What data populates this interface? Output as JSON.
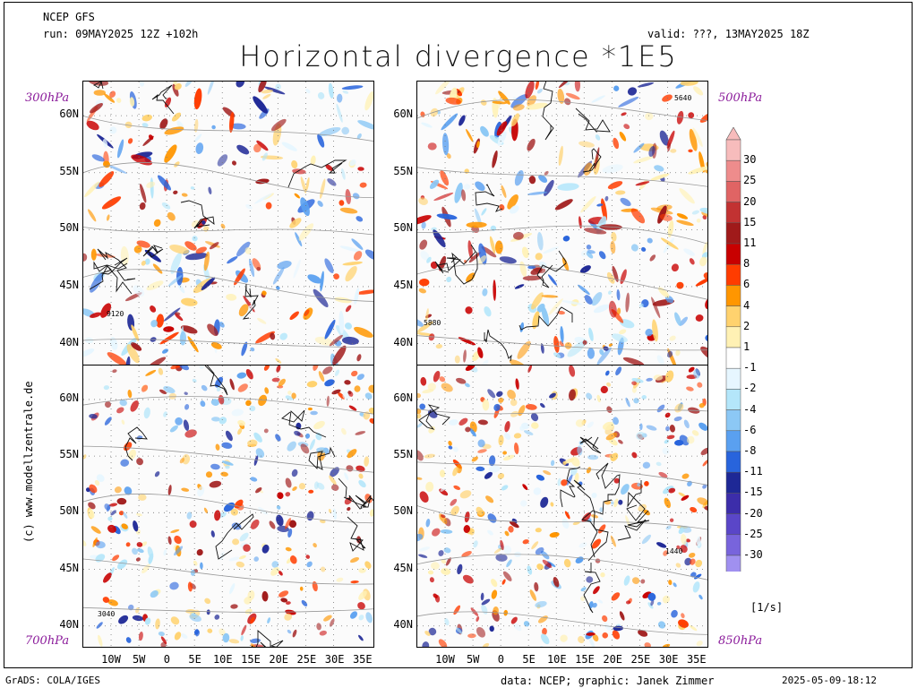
{
  "header": {
    "model": "NCEP GFS",
    "run": "run: 09MAY2025 12Z +102h",
    "valid": "valid: ???, 13MAY2025 18Z",
    "title": "Horizontal divergence *1E5"
  },
  "panels": [
    {
      "id": "p300",
      "level": "300hPa",
      "lat_labels": [
        "60N",
        "55N",
        "50N",
        "45N",
        "40N"
      ],
      "contour_labels": [
        "9120"
      ]
    },
    {
      "id": "p500",
      "level": "500hPa",
      "lat_labels": [
        "60N",
        "55N",
        "50N",
        "45N",
        "40N"
      ],
      "contour_labels": [
        "5640",
        "5880"
      ]
    },
    {
      "id": "p700",
      "level": "700hPa",
      "lat_labels": [
        "60N",
        "55N",
        "50N",
        "45N",
        "40N"
      ],
      "contour_labels": [
        "3040"
      ]
    },
    {
      "id": "p850",
      "level": "850hPa",
      "lat_labels": [
        "60N",
        "55N",
        "50N",
        "45N",
        "40N"
      ],
      "contour_labels": [
        "1440"
      ]
    }
  ],
  "lon_labels": [
    "10W",
    "5W",
    "0",
    "5E",
    "10E",
    "15E",
    "20E",
    "25E",
    "30E",
    "35E"
  ],
  "colorbar": {
    "unit": "[1/s]",
    "labels": [
      "30",
      "25",
      "20",
      "15",
      "11",
      "8",
      "6",
      "4",
      "2",
      "1",
      "-1",
      "-2",
      "-4",
      "-6",
      "-8",
      "-11",
      "-15",
      "-20",
      "-25",
      "-30"
    ],
    "colors": [
      "#f7bcbc",
      "#ee8c8c",
      "#e06464",
      "#c23232",
      "#a01a1a",
      "#c80000",
      "#ff3c00",
      "#ff9600",
      "#ffd26e",
      "#fff1b4",
      "#ffffff",
      "#e6f6ff",
      "#b4e6fa",
      "#8cc8f5",
      "#5aa0f0",
      "#2864dc",
      "#1e2896",
      "#3c2daa",
      "#5a46c8",
      "#7864dc",
      "#a090f0"
    ]
  },
  "credit": "(c) www.modellzentrale.de",
  "footer": {
    "left": "GrADS: COLA/IGES",
    "center": "data: NCEP; graphic: Janek Zimmer",
    "right": "2025-05-09-18:12"
  }
}
